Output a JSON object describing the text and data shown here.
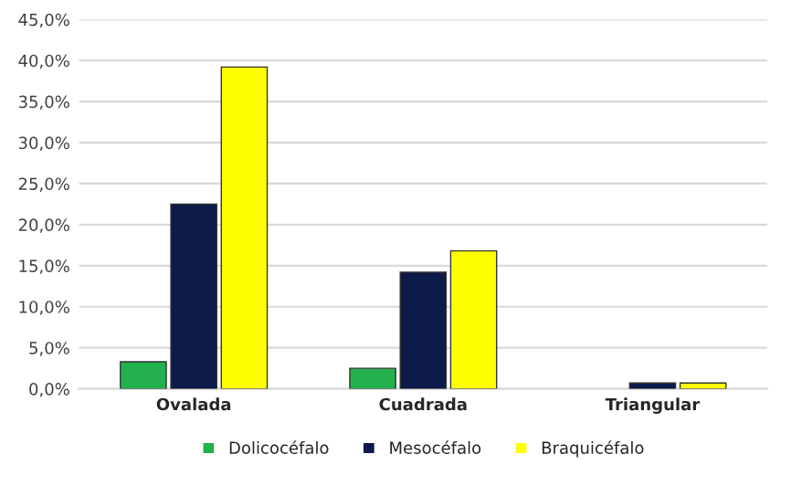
{
  "chart_data": {
    "type": "bar",
    "categories": [
      "Ovalada",
      "Cuadrada",
      "Triangular"
    ],
    "series": [
      {
        "name": "Dolicocéfalo",
        "color": "#22b14c",
        "values": [
          3.3,
          2.5,
          null
        ]
      },
      {
        "name": "Mesocéfalo",
        "color": "#0d1b4a",
        "values": [
          22.5,
          14.2,
          0.7
        ]
      },
      {
        "name": "Braquicéfalo",
        "color": "#ffff00",
        "values": [
          39.2,
          16.8,
          0.7
        ]
      }
    ],
    "ylim": [
      0,
      45
    ],
    "yticks": [
      {
        "value": 0,
        "label": "0,0%"
      },
      {
        "value": 5,
        "label": "5,0%"
      },
      {
        "value": 10,
        "label": "10,0%"
      },
      {
        "value": 15,
        "label": "15,0%"
      },
      {
        "value": 20,
        "label": "20,0%"
      },
      {
        "value": 25,
        "label": "25,0%"
      },
      {
        "value": 30,
        "label": "30,0%"
      },
      {
        "value": 35,
        "label": "35,0%"
      },
      {
        "value": 40,
        "label": "40,0%"
      },
      {
        "value": 45,
        "label": "45,0%"
      }
    ],
    "grid": "y",
    "legend": "bottom"
  }
}
